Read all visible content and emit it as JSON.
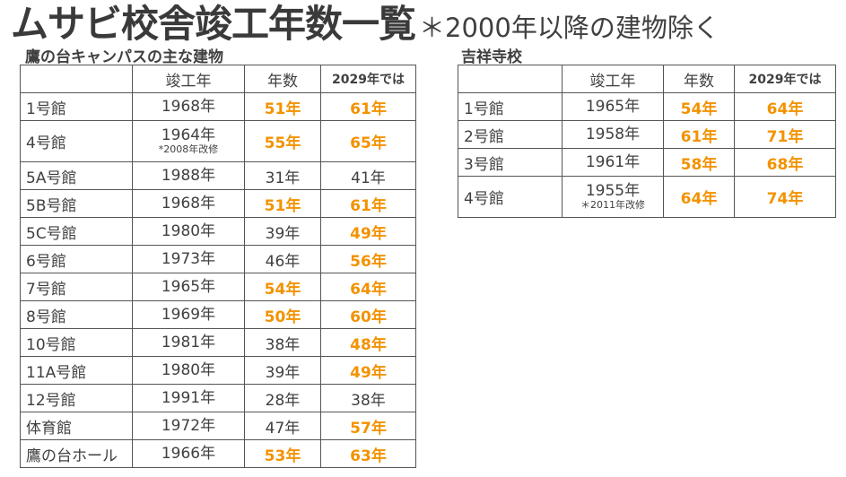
{
  "title": {
    "main": "ムサビ校舎竣工年数一覧",
    "sub": "＊2000年以降の建物除く"
  },
  "left": {
    "heading": "鷹の台キャンパスの主な建物",
    "headers": [
      "",
      "竣工年",
      "年数",
      "2029年では"
    ],
    "rows": [
      {
        "name": "1号館",
        "year": "1968年",
        "note": "",
        "age": "51年",
        "age_hl": true,
        "age2029": "61年",
        "age2029_hl": true
      },
      {
        "name": "4号館",
        "year": "1964年",
        "note": "*2008年改修",
        "age": "55年",
        "age_hl": true,
        "age2029": "65年",
        "age2029_hl": true
      },
      {
        "name": "5A号館",
        "year": "1988年",
        "note": "",
        "age": "31年",
        "age_hl": false,
        "age2029": "41年",
        "age2029_hl": false
      },
      {
        "name": "5B号館",
        "year": "1968年",
        "note": "",
        "age": "51年",
        "age_hl": true,
        "age2029": "61年",
        "age2029_hl": true
      },
      {
        "name": "5C号館",
        "year": "1980年",
        "note": "",
        "age": "39年",
        "age_hl": false,
        "age2029": "49年",
        "age2029_hl": true
      },
      {
        "name": "6号館",
        "year": "1973年",
        "note": "",
        "age": "46年",
        "age_hl": false,
        "age2029": "56年",
        "age2029_hl": true
      },
      {
        "name": "7号館",
        "year": "1965年",
        "note": "",
        "age": "54年",
        "age_hl": true,
        "age2029": "64年",
        "age2029_hl": true
      },
      {
        "name": "8号館",
        "year": "1969年",
        "note": "",
        "age": "50年",
        "age_hl": true,
        "age2029": "60年",
        "age2029_hl": true
      },
      {
        "name": "10号館",
        "year": "1981年",
        "note": "",
        "age": "38年",
        "age_hl": false,
        "age2029": "48年",
        "age2029_hl": true
      },
      {
        "name": "11A号館",
        "year": "1980年",
        "note": "",
        "age": "39年",
        "age_hl": false,
        "age2029": "49年",
        "age2029_hl": true
      },
      {
        "name": "12号館",
        "year": "1991年",
        "note": "",
        "age": "28年",
        "age_hl": false,
        "age2029": "38年",
        "age2029_hl": false
      },
      {
        "name": "体育館",
        "year": "1972年",
        "note": "",
        "age": "47年",
        "age_hl": false,
        "age2029": "57年",
        "age2029_hl": true
      },
      {
        "name": "鷹の台ホール",
        "year": "1966年",
        "note": "",
        "age": "53年",
        "age_hl": true,
        "age2029": "63年",
        "age2029_hl": true
      }
    ]
  },
  "right": {
    "heading": "吉祥寺校",
    "headers": [
      "",
      "竣工年",
      "年数",
      "2029年では"
    ],
    "rows": [
      {
        "name": "1号館",
        "year": "1965年",
        "note": "",
        "age": "54年",
        "age_hl": true,
        "age2029": "64年",
        "age2029_hl": true
      },
      {
        "name": "2号館",
        "year": "1958年",
        "note": "",
        "age": "61年",
        "age_hl": true,
        "age2029": "71年",
        "age2029_hl": true
      },
      {
        "name": "3号館",
        "year": "1961年",
        "note": "",
        "age": "58年",
        "age_hl": true,
        "age2029": "68年",
        "age2029_hl": true
      },
      {
        "name": "4号館",
        "year": "1955年",
        "note": "＊2011年改修",
        "age": "64年",
        "age_hl": true,
        "age2029": "74年",
        "age2029_hl": true
      }
    ]
  },
  "colors": {
    "highlight": "#f39200",
    "text": "#404040"
  }
}
